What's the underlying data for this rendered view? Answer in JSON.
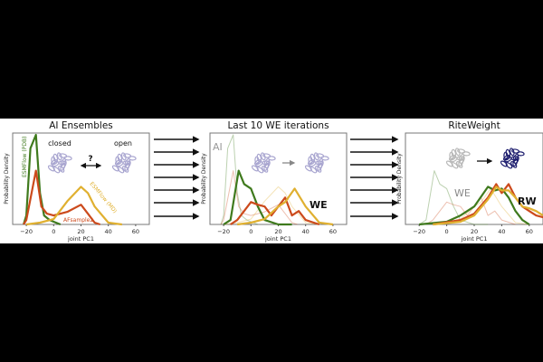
{
  "chart_data": [
    {
      "type": "line",
      "title": "AI Ensembles",
      "xlabel": "joint PC1",
      "ylabel": "Probability Density",
      "xlim": [
        -30,
        70
      ],
      "xticks": [
        -20,
        0,
        20,
        40,
        60
      ],
      "grid": false,
      "annotations": {
        "closed": "closed",
        "open": "open",
        "question": "?"
      },
      "series": [
        {
          "name": "ESMFlow (PDB)",
          "color": "#3f7a1d",
          "x": [
            -22,
            -20,
            -17,
            -13,
            -10,
            -7,
            -3,
            0,
            5
          ],
          "y": [
            0,
            0.1,
            0.85,
            1.0,
            0.35,
            0.1,
            0.05,
            0.03,
            0
          ]
        },
        {
          "name": "AFsample2",
          "color": "#cc4a1c",
          "x": [
            -22,
            -20,
            -13,
            -9,
            -5,
            0,
            10,
            20,
            25,
            30,
            34
          ],
          "y": [
            0,
            0.05,
            0.6,
            0.2,
            0.12,
            0.1,
            0.14,
            0.22,
            0.12,
            0.02,
            0
          ]
        },
        {
          "name": "ESMFlow (MD)",
          "color": "#e0b030",
          "x": [
            -20,
            -10,
            0,
            10,
            20,
            25,
            30,
            40,
            50
          ],
          "y": [
            0,
            0.02,
            0.06,
            0.26,
            0.42,
            0.35,
            0.2,
            0.02,
            0
          ]
        }
      ]
    },
    {
      "type": "line",
      "title": "Last 10 WE iterations",
      "xlabel": "joint PC1",
      "ylabel": "Probability Density",
      "xlim": [
        -30,
        70
      ],
      "xticks": [
        -20,
        0,
        20,
        40,
        60
      ],
      "grid": false,
      "annotations": {
        "faint_label": "AI",
        "bold_label": "WE"
      },
      "series": [
        {
          "color": "#3f7a1d",
          "faint": true,
          "x": [
            -22,
            -20,
            -17,
            -13,
            -10,
            -7,
            -3,
            0,
            5
          ],
          "y": [
            0,
            0.1,
            0.85,
            1.0,
            0.35,
            0.1,
            0.05,
            0.03,
            0
          ]
        },
        {
          "color": "#cc4a1c",
          "faint": true,
          "x": [
            -22,
            -20,
            -13,
            -9,
            -5,
            0,
            10,
            20,
            25,
            30,
            34
          ],
          "y": [
            0,
            0.05,
            0.6,
            0.2,
            0.12,
            0.1,
            0.14,
            0.22,
            0.12,
            0.02,
            0
          ]
        },
        {
          "color": "#e0b030",
          "faint": true,
          "x": [
            -20,
            -10,
            0,
            10,
            20,
            25,
            30,
            40,
            50
          ],
          "y": [
            0,
            0.02,
            0.06,
            0.26,
            0.42,
            0.35,
            0.2,
            0.02,
            0
          ]
        },
        {
          "color": "#3f7a1d",
          "x": [
            -20,
            -15,
            -9,
            -5,
            0,
            5,
            10,
            20,
            30
          ],
          "y": [
            0,
            0.05,
            0.6,
            0.45,
            0.4,
            0.2,
            0.05,
            0,
            0
          ]
        },
        {
          "color": "#cc4a1c",
          "x": [
            -15,
            -10,
            0,
            5,
            10,
            15,
            20,
            25,
            30,
            35,
            40,
            50
          ],
          "y": [
            0,
            0.05,
            0.25,
            0.22,
            0.2,
            0.1,
            0.2,
            0.3,
            0.1,
            0.15,
            0.05,
            0
          ]
        },
        {
          "color": "#e0b030",
          "x": [
            -10,
            0,
            10,
            20,
            25,
            32,
            40,
            50,
            60
          ],
          "y": [
            0,
            0.02,
            0.06,
            0.2,
            0.25,
            0.4,
            0.2,
            0.02,
            0
          ]
        }
      ]
    },
    {
      "type": "line",
      "title": "RiteWeight",
      "xlabel": "joint PC1",
      "ylabel": "Probability Density",
      "xlim": [
        -30,
        70
      ],
      "xticks": [
        -20,
        0,
        20,
        40,
        60
      ],
      "grid": false,
      "annotations": {
        "faint_label": "WE",
        "bold_label": "RW"
      },
      "series": [
        {
          "color": "#3f7a1d",
          "faint": true,
          "x": [
            -20,
            -15,
            -9,
            -5,
            0,
            5,
            10,
            20,
            30
          ],
          "y": [
            0,
            0.05,
            0.6,
            0.45,
            0.4,
            0.2,
            0.05,
            0,
            0
          ]
        },
        {
          "color": "#cc4a1c",
          "faint": true,
          "x": [
            -15,
            -10,
            0,
            5,
            10,
            15,
            20,
            25,
            30,
            35,
            40,
            50
          ],
          "y": [
            0,
            0.05,
            0.25,
            0.22,
            0.2,
            0.1,
            0.2,
            0.3,
            0.1,
            0.15,
            0.05,
            0
          ]
        },
        {
          "color": "#e0b030",
          "faint": true,
          "x": [
            -10,
            0,
            10,
            20,
            25,
            32,
            40,
            50,
            60
          ],
          "y": [
            0,
            0.02,
            0.06,
            0.2,
            0.25,
            0.4,
            0.2,
            0.02,
            0
          ]
        },
        {
          "color": "#3f7a1d",
          "x": [
            -20,
            0,
            10,
            20,
            30,
            35,
            40,
            45,
            50,
            55,
            60
          ],
          "y": [
            0,
            0.03,
            0.1,
            0.2,
            0.42,
            0.38,
            0.4,
            0.3,
            0.15,
            0.05,
            0
          ]
        },
        {
          "color": "#cc4a1c",
          "x": [
            -10,
            10,
            20,
            30,
            36,
            40,
            45,
            50,
            55,
            60,
            65,
            70
          ],
          "y": [
            0,
            0.05,
            0.12,
            0.3,
            0.45,
            0.35,
            0.45,
            0.3,
            0.2,
            0.15,
            0.1,
            0.08
          ]
        },
        {
          "color": "#e0b030",
          "x": [
            -10,
            10,
            20,
            30,
            36,
            40,
            45,
            50,
            55,
            60,
            65,
            70
          ],
          "y": [
            0,
            0.03,
            0.1,
            0.28,
            0.42,
            0.38,
            0.38,
            0.3,
            0.2,
            0.18,
            0.15,
            0.1
          ]
        }
      ]
    }
  ],
  "series_labels": {
    "esm_pdb": "ESMFlow (PDB)",
    "afsample": "AFsample2",
    "esm_md": "ESMFlow (MD)"
  },
  "colors": {
    "protein_light": "#a9a6d0",
    "protein_grey": "#b8b8b8",
    "protein_dark": "#1d1d6e"
  }
}
